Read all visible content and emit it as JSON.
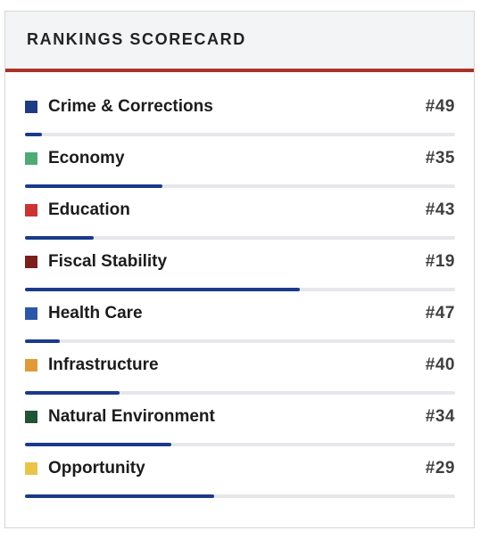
{
  "scorecard": {
    "title": "RANKINGS SCORECARD",
    "rank_total": 50,
    "bar_color": "#1b3a8c",
    "header_accent_color": "#a83229",
    "items": [
      {
        "label": "Crime & Corrections",
        "rank": "#49",
        "rank_value": 49,
        "progress": 0.04,
        "color": "#1e3c86"
      },
      {
        "label": "Economy",
        "rank": "#35",
        "rank_value": 35,
        "progress": 0.32,
        "color": "#4faa78"
      },
      {
        "label": "Education",
        "rank": "#43",
        "rank_value": 43,
        "progress": 0.16,
        "color": "#cc3333"
      },
      {
        "label": "Fiscal Stability",
        "rank": "#19",
        "rank_value": 19,
        "progress": 0.64,
        "color": "#7a1f1a"
      },
      {
        "label": "Health Care",
        "rank": "#47",
        "rank_value": 47,
        "progress": 0.08,
        "color": "#2c56a8"
      },
      {
        "label": "Infrastructure",
        "rank": "#40",
        "rank_value": 40,
        "progress": 0.22,
        "color": "#e09a3a"
      },
      {
        "label": "Natural Environment",
        "rank": "#34",
        "rank_value": 34,
        "progress": 0.34,
        "color": "#215434"
      },
      {
        "label": "Opportunity",
        "rank": "#29",
        "rank_value": 29,
        "progress": 0.44,
        "color": "#e9c44a"
      }
    ]
  }
}
